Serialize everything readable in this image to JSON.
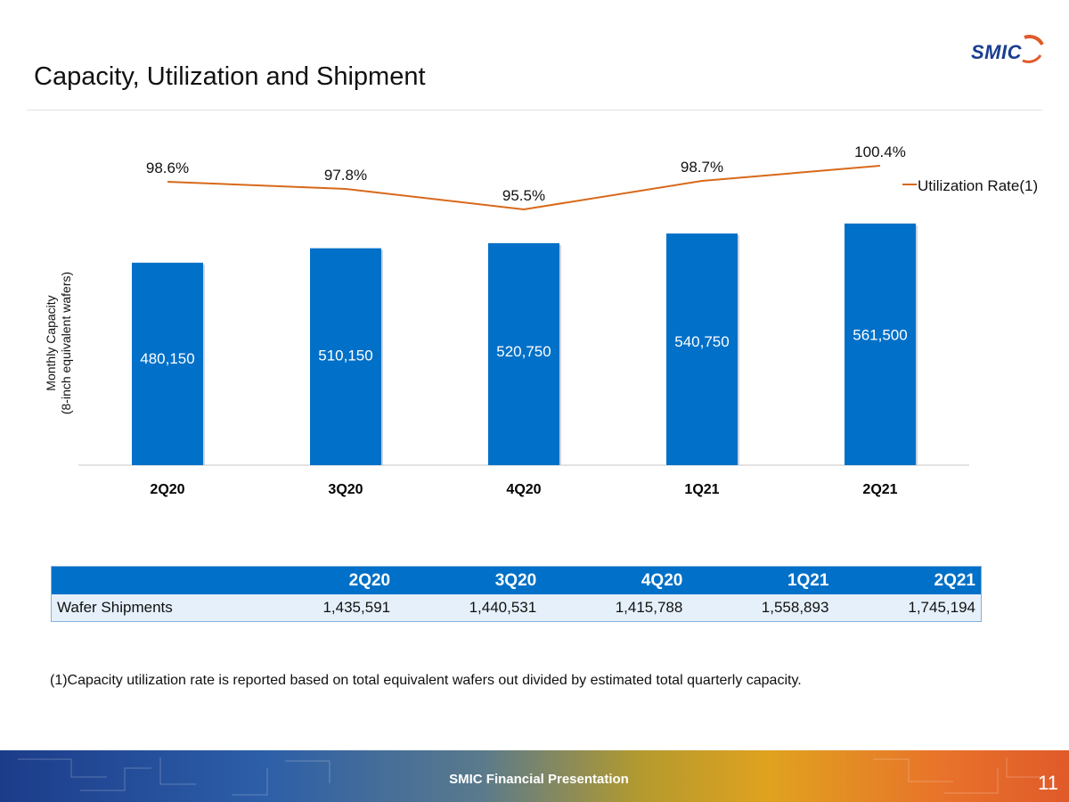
{
  "slide": {
    "title": "Capacity, Utilization and Shipment",
    "logo_text": "SMIC",
    "footnote": "(1)Capacity utilization rate is reported based on total equivalent wafers out divided by estimated total quarterly capacity.",
    "footer_label": "SMIC Financial Presentation",
    "page_number": "11"
  },
  "colors": {
    "bar": "#0070c8",
    "line": "#d8691a",
    "header_bg": "#0070c8",
    "row_bg": "#e6f0fa"
  },
  "chart_data": {
    "type": "bar",
    "categories": [
      "2Q20",
      "3Q20",
      "4Q20",
      "1Q21",
      "2Q21"
    ],
    "series": [
      {
        "name": "Monthly Capacity",
        "type": "bar",
        "values": [
          480150,
          510150,
          520750,
          540750,
          561500
        ],
        "labels": [
          "480,150",
          "510,150",
          "520,750",
          "540,750",
          "561,500"
        ]
      },
      {
        "name": "Utilization Rate(1)",
        "type": "line",
        "values": [
          98.6,
          97.8,
          95.5,
          98.7,
          100.4
        ],
        "labels": [
          "98.6%",
          "97.8%",
          "95.5%",
          "98.7%",
          "100.4%"
        ]
      }
    ],
    "ylabel_line1": "Monthly Capacity",
    "ylabel_line2": "(8-inch equivalent wafers)",
    "legend": "right",
    "grid": false
  },
  "table": {
    "headers": [
      "",
      "2Q20",
      "3Q20",
      "4Q20",
      "1Q21",
      "2Q21"
    ],
    "rows": [
      [
        "Wafer Shipments",
        "1,435,591",
        "1,440,531",
        "1,415,788",
        "1,558,893",
        "1,745,194"
      ]
    ]
  }
}
